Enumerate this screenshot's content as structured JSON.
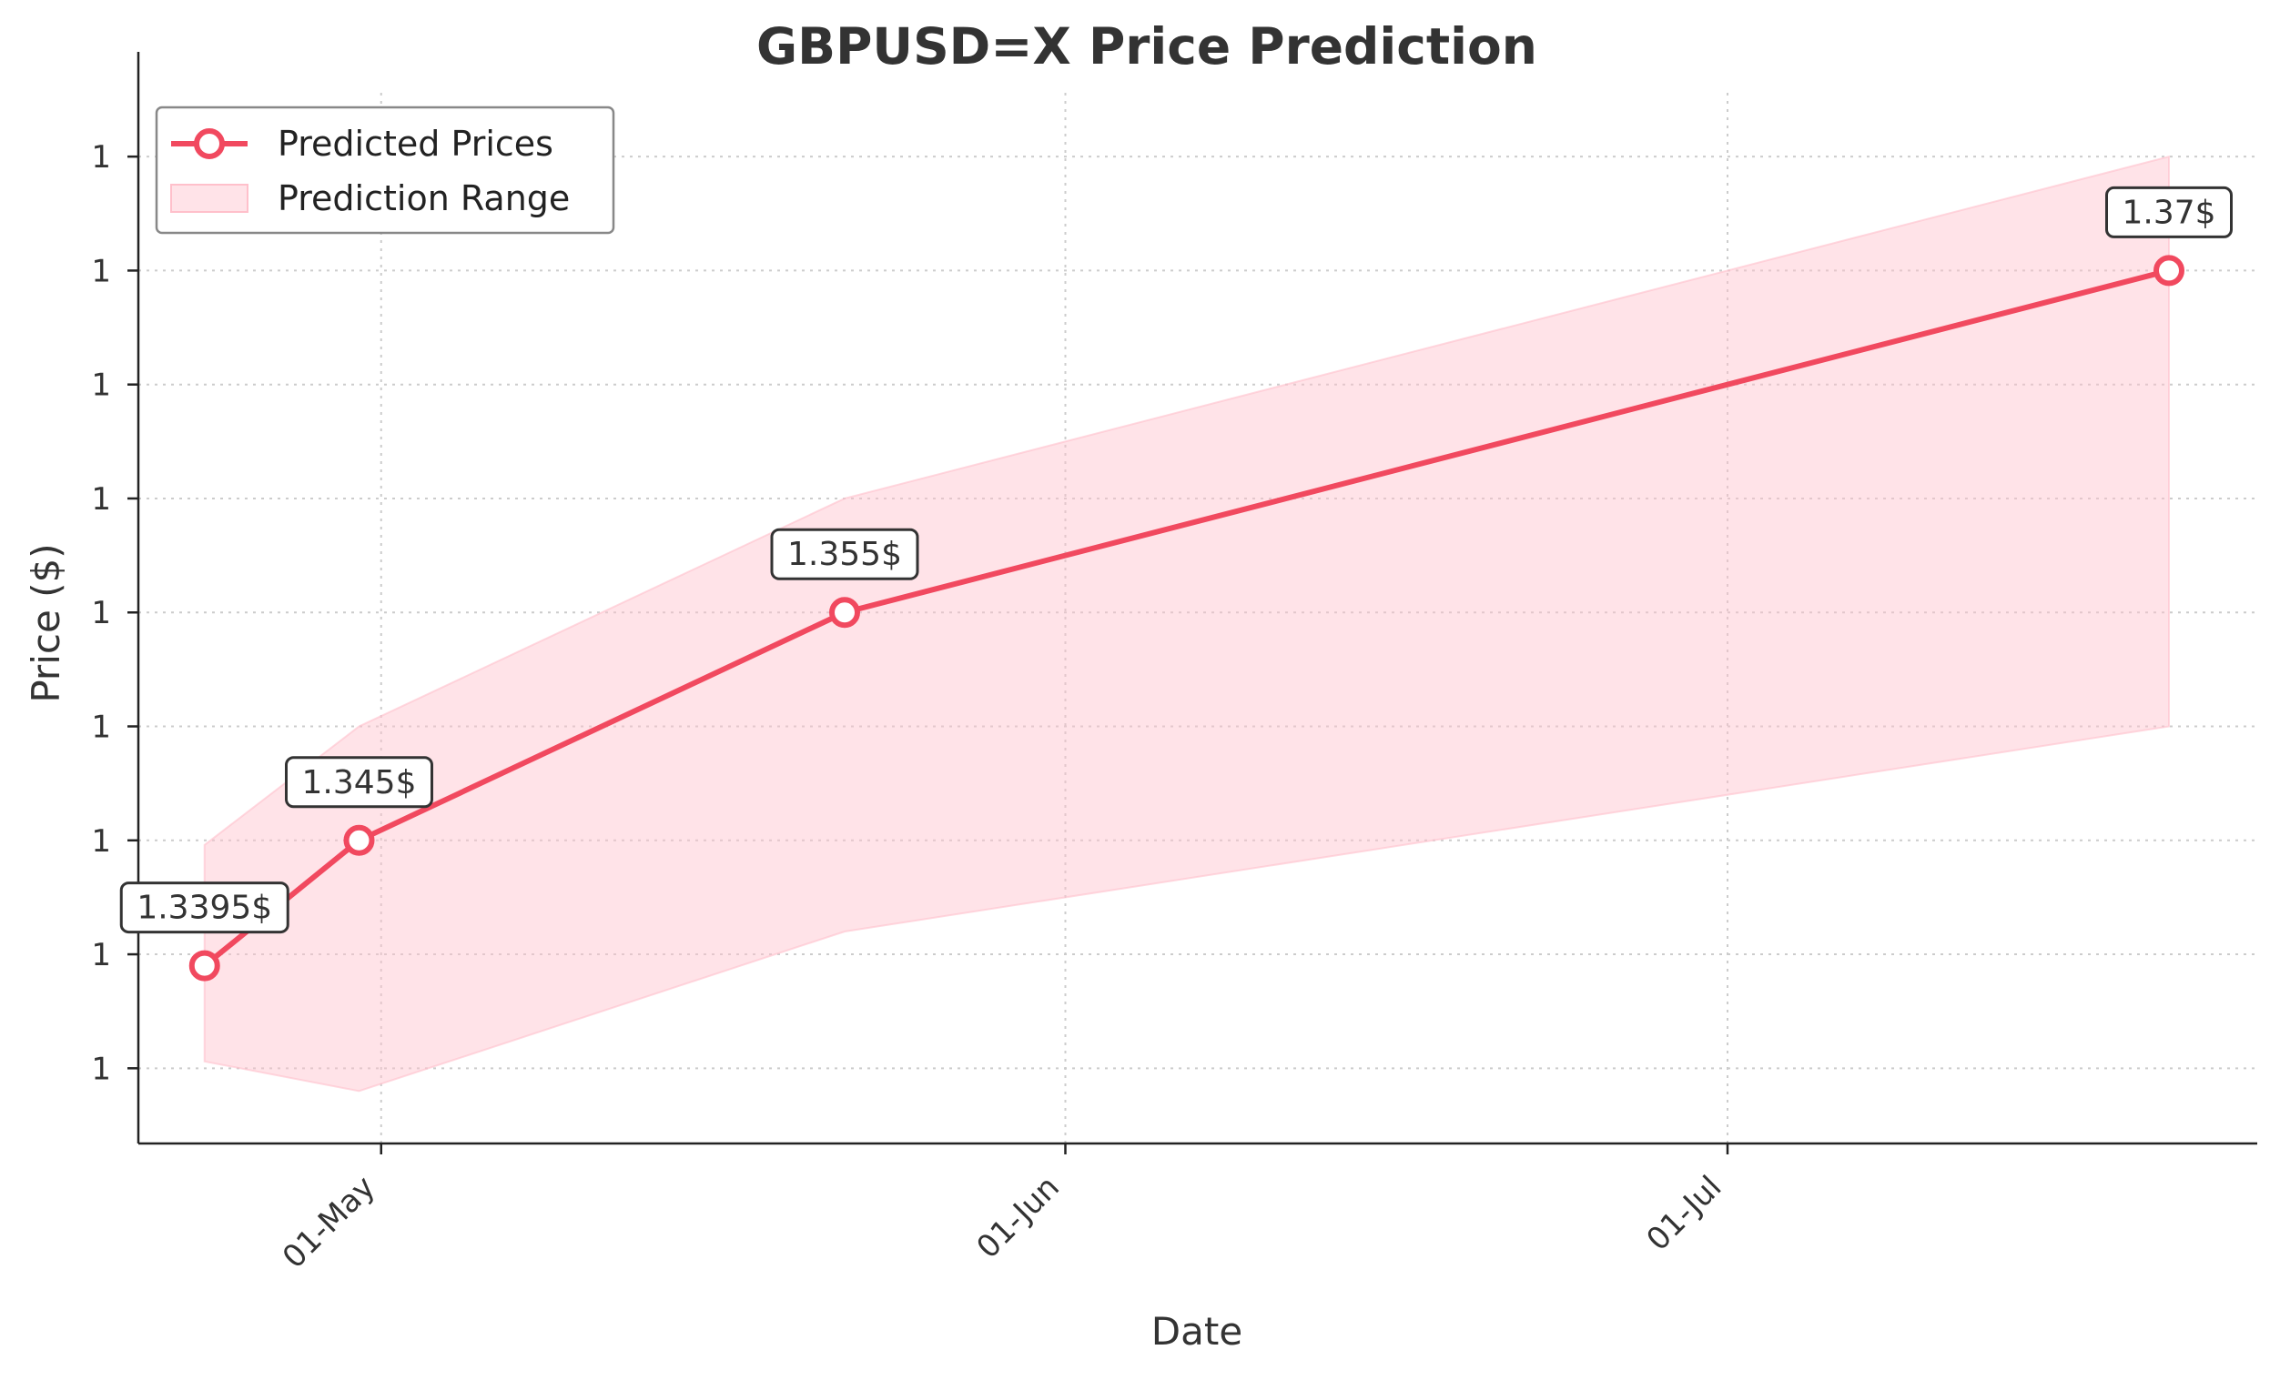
{
  "colors": {
    "line": "#f1495f",
    "band_fill": "#ffc0cb",
    "text": "#333333",
    "grid": "#cccccc",
    "axis": "#222222"
  },
  "chart_data": {
    "type": "line",
    "title": "GBPUSD=X Price Prediction",
    "xlabel": "Date",
    "ylabel": "Price ($)",
    "x_ticks": [
      "01-May",
      "01-Jun",
      "01-Jul"
    ],
    "y_tick_labels": [
      "1",
      "1",
      "1",
      "1",
      "1",
      "1",
      "1",
      "1",
      "1"
    ],
    "grid": true,
    "legend_position": "top-left",
    "series": [
      {
        "name": "Predicted Prices",
        "type": "line",
        "x": [
          "2025-04-23",
          "2025-04-30",
          "2025-05-22",
          "2025-07-21"
        ],
        "y": [
          1.3395,
          1.345,
          1.355,
          1.37
        ]
      },
      {
        "name": "Prediction Range",
        "type": "area",
        "x": [
          "2025-04-23",
          "2025-04-30",
          "2025-05-22",
          "2025-07-21"
        ],
        "lower": [
          1.3353,
          1.334,
          1.341,
          1.35
        ],
        "upper": [
          1.3448,
          1.35,
          1.36,
          1.375
        ]
      }
    ],
    "annotations": [
      {
        "x": "2025-04-23",
        "y": 1.3395,
        "text": "1.3395$"
      },
      {
        "x": "2025-04-30",
        "y": 1.345,
        "text": "1.345$"
      },
      {
        "x": "2025-05-22",
        "y": 1.355,
        "text": "1.355$"
      },
      {
        "x": "2025-07-21",
        "y": 1.37,
        "text": "1.37$"
      }
    ]
  }
}
